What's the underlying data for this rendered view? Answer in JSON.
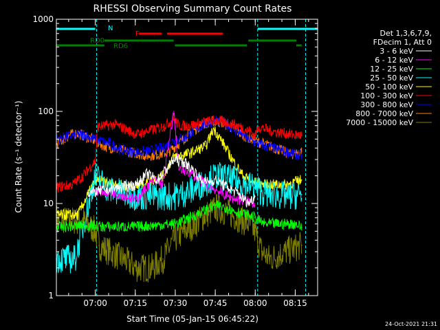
{
  "chart_data": {
    "type": "line",
    "title": "RHESSI Observing Summary Count Rates",
    "xlabel": "Start Time (05-Jan-15 06:45:22)",
    "ylabel": "Count Rate (s⁻¹ detector⁻¹)",
    "x_unit": "minutes after 06:45:22",
    "xlim": [
      0,
      98
    ],
    "ylim": [
      1,
      1000
    ],
    "yscale": "log",
    "xticks": [
      {
        "value": 14.6,
        "label": "07:00"
      },
      {
        "value": 29.6,
        "label": "07:15"
      },
      {
        "value": 44.6,
        "label": "07:30"
      },
      {
        "value": 59.6,
        "label": "07:45"
      },
      {
        "value": 74.6,
        "label": "08:00"
      },
      {
        "value": 89.6,
        "label": "08:15"
      }
    ],
    "yticks": [
      {
        "value": 1,
        "label": "1"
      },
      {
        "value": 10,
        "label": "10"
      },
      {
        "value": 100,
        "label": "100"
      },
      {
        "value": 1000,
        "label": "1000"
      }
    ],
    "legend": {
      "position": "right",
      "header": [
        "Det 1,3,6,7,9,",
        "FDecim 1, Att 0"
      ]
    },
    "series": [
      {
        "name": "3 - 6 keV",
        "color": "#ffffff",
        "values": [
          [
            12.0,
            13
          ],
          [
            30.0,
            16
          ],
          [
            34,
            21
          ],
          [
            38,
            18
          ],
          [
            44,
            30
          ],
          [
            48,
            28
          ],
          [
            52,
            22
          ],
          [
            55,
            17
          ],
          [
            60,
            18
          ],
          [
            64,
            15
          ],
          [
            68,
            13
          ],
          [
            72,
            10
          ],
          [
            74.5,
            12
          ]
        ]
      },
      {
        "name": "6 - 12 keV",
        "color": "#ff00ff",
        "values": [
          [
            14.6,
            14
          ],
          [
            22,
            13
          ],
          [
            26,
            12
          ],
          [
            30,
            11
          ],
          [
            33,
            14
          ],
          [
            36,
            18
          ],
          [
            40,
            16
          ],
          [
            44,
            100
          ],
          [
            46,
            23
          ],
          [
            50,
            22
          ],
          [
            55,
            17
          ],
          [
            60,
            14
          ],
          [
            64,
            12
          ],
          [
            68,
            11
          ],
          [
            72,
            10.5
          ],
          [
            74.5,
            10
          ]
        ]
      },
      {
        "name": "12 - 25 keV",
        "color": "#00ff00",
        "values": [
          [
            0,
            5.5
          ],
          [
            10,
            5.8
          ],
          [
            14.6,
            5.8
          ],
          [
            17,
            5.6
          ],
          [
            30,
            5.6
          ],
          [
            44,
            6
          ],
          [
            50,
            7
          ],
          [
            56,
            8.5
          ],
          [
            60,
            9.5
          ],
          [
            64,
            9
          ],
          [
            68,
            8
          ],
          [
            72,
            7.5
          ],
          [
            74.5,
            7
          ],
          [
            78,
            6
          ],
          [
            90,
            6
          ],
          [
            92,
            5.5
          ]
        ]
      },
      {
        "name": "25 - 50 keV",
        "color": "#00ffff",
        "values": [
          [
            0,
            2.5
          ],
          [
            7,
            2.5
          ],
          [
            14.6,
            20
          ],
          [
            20,
            14
          ],
          [
            30,
            12
          ],
          [
            40,
            12
          ],
          [
            44,
            12
          ],
          [
            48,
            13
          ],
          [
            52,
            14.5
          ],
          [
            56,
            17
          ],
          [
            60,
            20
          ],
          [
            64,
            19
          ],
          [
            68,
            17
          ],
          [
            72,
            16
          ],
          [
            74.5,
            15
          ],
          [
            78,
            13
          ],
          [
            86,
            12
          ],
          [
            92,
            12.5
          ]
        ]
      },
      {
        "name": "50 - 100 keV",
        "color": "#ffff00",
        "values": [
          [
            0,
            7.5
          ],
          [
            8,
            7.5
          ],
          [
            14.6,
            18
          ],
          [
            20,
            16.5
          ],
          [
            30,
            15
          ],
          [
            40,
            20
          ],
          [
            44,
            32
          ],
          [
            50,
            35
          ],
          [
            56,
            42
          ],
          [
            59,
            65
          ],
          [
            62,
            48
          ],
          [
            66,
            30
          ],
          [
            70,
            20
          ],
          [
            74,
            17
          ],
          [
            78,
            16
          ],
          [
            86,
            16
          ],
          [
            92,
            18
          ]
        ]
      },
      {
        "name": "100 - 300 keV",
        "color": "#ff0000",
        "values": [
          [
            0,
            15
          ],
          [
            6,
            16
          ],
          [
            10,
            20
          ],
          [
            14.6,
            29
          ],
          [
            15.5,
            68
          ],
          [
            22,
            72
          ],
          [
            26,
            64
          ],
          [
            30,
            56
          ],
          [
            35,
            62
          ],
          [
            40,
            68
          ],
          [
            44,
            82
          ],
          [
            46,
            70
          ],
          [
            50,
            70
          ],
          [
            55,
            76
          ],
          [
            60,
            80
          ],
          [
            64,
            76
          ],
          [
            68,
            70
          ],
          [
            72,
            62
          ],
          [
            74.5,
            55
          ],
          [
            76,
            68
          ],
          [
            80,
            62
          ],
          [
            85,
            58
          ],
          [
            90,
            55
          ],
          [
            92,
            55
          ]
        ]
      },
      {
        "name": "300 - 800 keV",
        "color": "#0000ff",
        "values": [
          [
            0,
            50
          ],
          [
            5,
            54
          ],
          [
            10,
            56
          ],
          [
            14.6,
            50
          ],
          [
            20,
            45
          ],
          [
            24,
            38
          ],
          [
            30,
            36
          ],
          [
            34,
            37
          ],
          [
            40,
            40
          ],
          [
            44,
            48
          ],
          [
            48,
            52
          ],
          [
            52,
            62
          ],
          [
            56,
            74
          ],
          [
            60,
            80
          ],
          [
            64,
            72
          ],
          [
            68,
            60
          ],
          [
            72,
            50
          ],
          [
            74.5,
            46
          ],
          [
            78,
            42
          ],
          [
            84,
            38
          ],
          [
            90,
            34
          ],
          [
            92,
            33
          ]
        ]
      },
      {
        "name": "800 - 7000 keV",
        "color": "#ff7f00",
        "values": [
          [
            0,
            44
          ],
          [
            5,
            55
          ],
          [
            8,
            58
          ],
          [
            12,
            52
          ],
          [
            14.6,
            48
          ],
          [
            18,
            42
          ],
          [
            24,
            38
          ],
          [
            30,
            35
          ],
          [
            34,
            33
          ],
          [
            38,
            34
          ],
          [
            42,
            36
          ],
          [
            46,
            45
          ],
          [
            50,
            58
          ],
          [
            54,
            70
          ],
          [
            58,
            78
          ],
          [
            62,
            76
          ],
          [
            66,
            66
          ],
          [
            70,
            55
          ],
          [
            74.5,
            48
          ],
          [
            78,
            44
          ],
          [
            84,
            38
          ],
          [
            88,
            34
          ],
          [
            92,
            37
          ]
        ]
      },
      {
        "name": "7000 - 15000 keV",
        "color": "#7f7f00",
        "values": [
          [
            0,
            7
          ],
          [
            4,
            6.5
          ],
          [
            10,
            6.5
          ],
          [
            14.6,
            5
          ],
          [
            16,
            3.5
          ],
          [
            20,
            3
          ],
          [
            25,
            2.5
          ],
          [
            30,
            2
          ],
          [
            36,
            2
          ],
          [
            40,
            2.5
          ],
          [
            44,
            4
          ],
          [
            48,
            5
          ],
          [
            52,
            6
          ],
          [
            56,
            7.5
          ],
          [
            60,
            9
          ],
          [
            64,
            8
          ],
          [
            68,
            7
          ],
          [
            72,
            6
          ],
          [
            74.5,
            5
          ],
          [
            77,
            3
          ],
          [
            80,
            2.5
          ],
          [
            86,
            3
          ],
          [
            92,
            3.5
          ]
        ]
      }
    ],
    "overlays": {
      "N": {
        "label": "N",
        "color": "#00ffff",
        "segments": [
          [
            0,
            14.6
          ],
          [
            75.5,
            98
          ]
        ]
      },
      "F": {
        "label": "F",
        "color": "#ff0000",
        "segments": [
          [
            31,
            39.5
          ],
          [
            41.5,
            62.5
          ]
        ]
      },
      "RD0": {
        "label": "RD0",
        "color": "#008000",
        "segments": [
          [
            18,
            44
          ],
          [
            72,
            90
          ]
        ]
      },
      "RD6": {
        "label": "RD6",
        "color": "#008000",
        "segments": [
          [
            0,
            18
          ],
          [
            44.5,
            71.5
          ],
          [
            90,
            92
          ]
        ]
      }
    },
    "night_markers": [
      15.1,
      75.5,
      93.5
    ]
  },
  "footer": {
    "timestamp": "24-Oct-2021 21:31"
  }
}
